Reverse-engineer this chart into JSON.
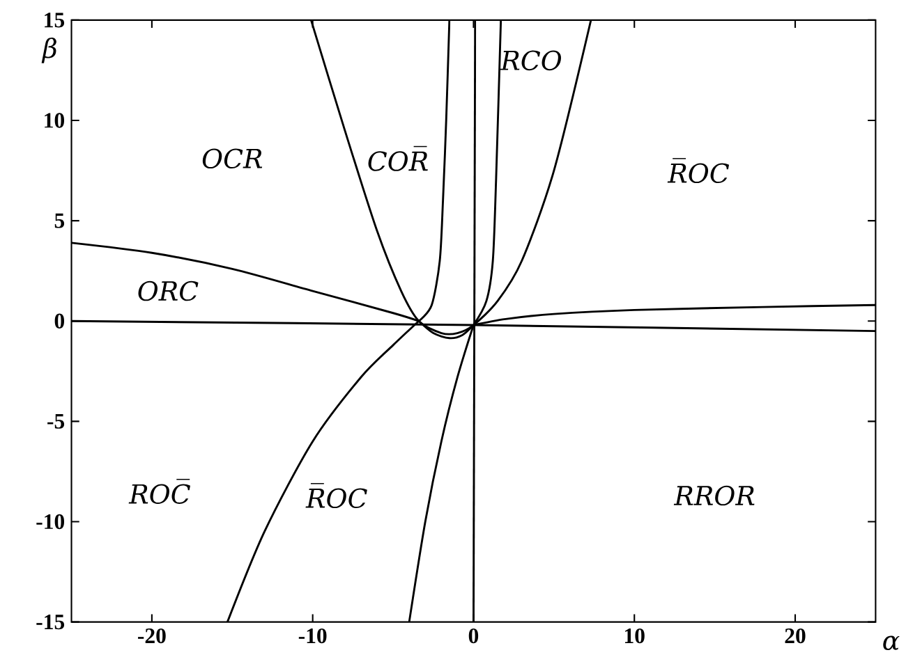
{
  "chart_data": {
    "type": "line",
    "xlabel": "α",
    "ylabel": "β",
    "xlim": [
      -25,
      25
    ],
    "ylim": [
      -15,
      15
    ],
    "xticks": [
      -20,
      -10,
      0,
      10,
      20
    ],
    "yticks": [
      -15,
      -10,
      -5,
      0,
      5,
      10,
      15
    ],
    "grid": false,
    "marker": "none",
    "line_style": "solid",
    "series": [
      {
        "color": "#000000",
        "x": [
          -25,
          0,
          25
        ],
        "values": [
          0,
          -0.2,
          -0.5
        ]
      },
      {
        "color": "#000000",
        "x": [
          -25,
          -20,
          -15,
          -10,
          -5,
          -3.4
        ],
        "values": [
          3.9,
          3.4,
          2.6,
          1.5,
          0.4,
          0
        ]
      },
      {
        "color": "#000000",
        "x": [
          -15.3,
          -13,
          -10,
          -7,
          -5,
          -3.4
        ],
        "values": [
          -15,
          -10.5,
          -6,
          -2.8,
          -1.2,
          0
        ]
      },
      {
        "color": "#000000",
        "x": [
          -10.1,
          -8,
          -6,
          -4.5,
          -3.4,
          -2,
          -1,
          0,
          1.5,
          3,
          5,
          7.3
        ],
        "values": [
          15,
          9.5,
          4.5,
          1.5,
          0,
          -0.6,
          -0.6,
          -0.2,
          1,
          3,
          7.5,
          15
        ]
      },
      {
        "color": "#000000",
        "x": [
          -3.4,
          -2.5,
          -1.5,
          -0.7,
          0
        ],
        "values": [
          0,
          -0.6,
          -0.85,
          -0.7,
          -0.2
        ]
      },
      {
        "color": "#000000",
        "x": [
          -3.4,
          -2.6,
          -2.1,
          -1.9,
          -1.7,
          -1.5
        ],
        "values": [
          0,
          0.8,
          3,
          6,
          10,
          15
        ]
      },
      {
        "color": "#000000",
        "x": [
          0,
          0.1
        ],
        "values": [
          -15,
          15
        ]
      },
      {
        "color": "#000000",
        "x": [
          0,
          0.8,
          1.2,
          1.4,
          1.7
        ],
        "values": [
          -0.2,
          1,
          3,
          7,
          15
        ]
      },
      {
        "color": "#000000",
        "x": [
          -4,
          -3,
          -2,
          -1,
          0
        ],
        "values": [
          -15,
          -10,
          -6,
          -2.8,
          -0.2
        ]
      },
      {
        "color": "#000000",
        "x": [
          0,
          2,
          5,
          10,
          18,
          25
        ],
        "values": [
          -0.2,
          0.1,
          0.35,
          0.55,
          0.7,
          0.8
        ]
      }
    ],
    "annotations": [
      "OCR",
      "COR̅",
      "RCO",
      "R̅OC",
      "ORC",
      "ROC̅",
      "R̅OC",
      "RROR"
    ]
  }
}
